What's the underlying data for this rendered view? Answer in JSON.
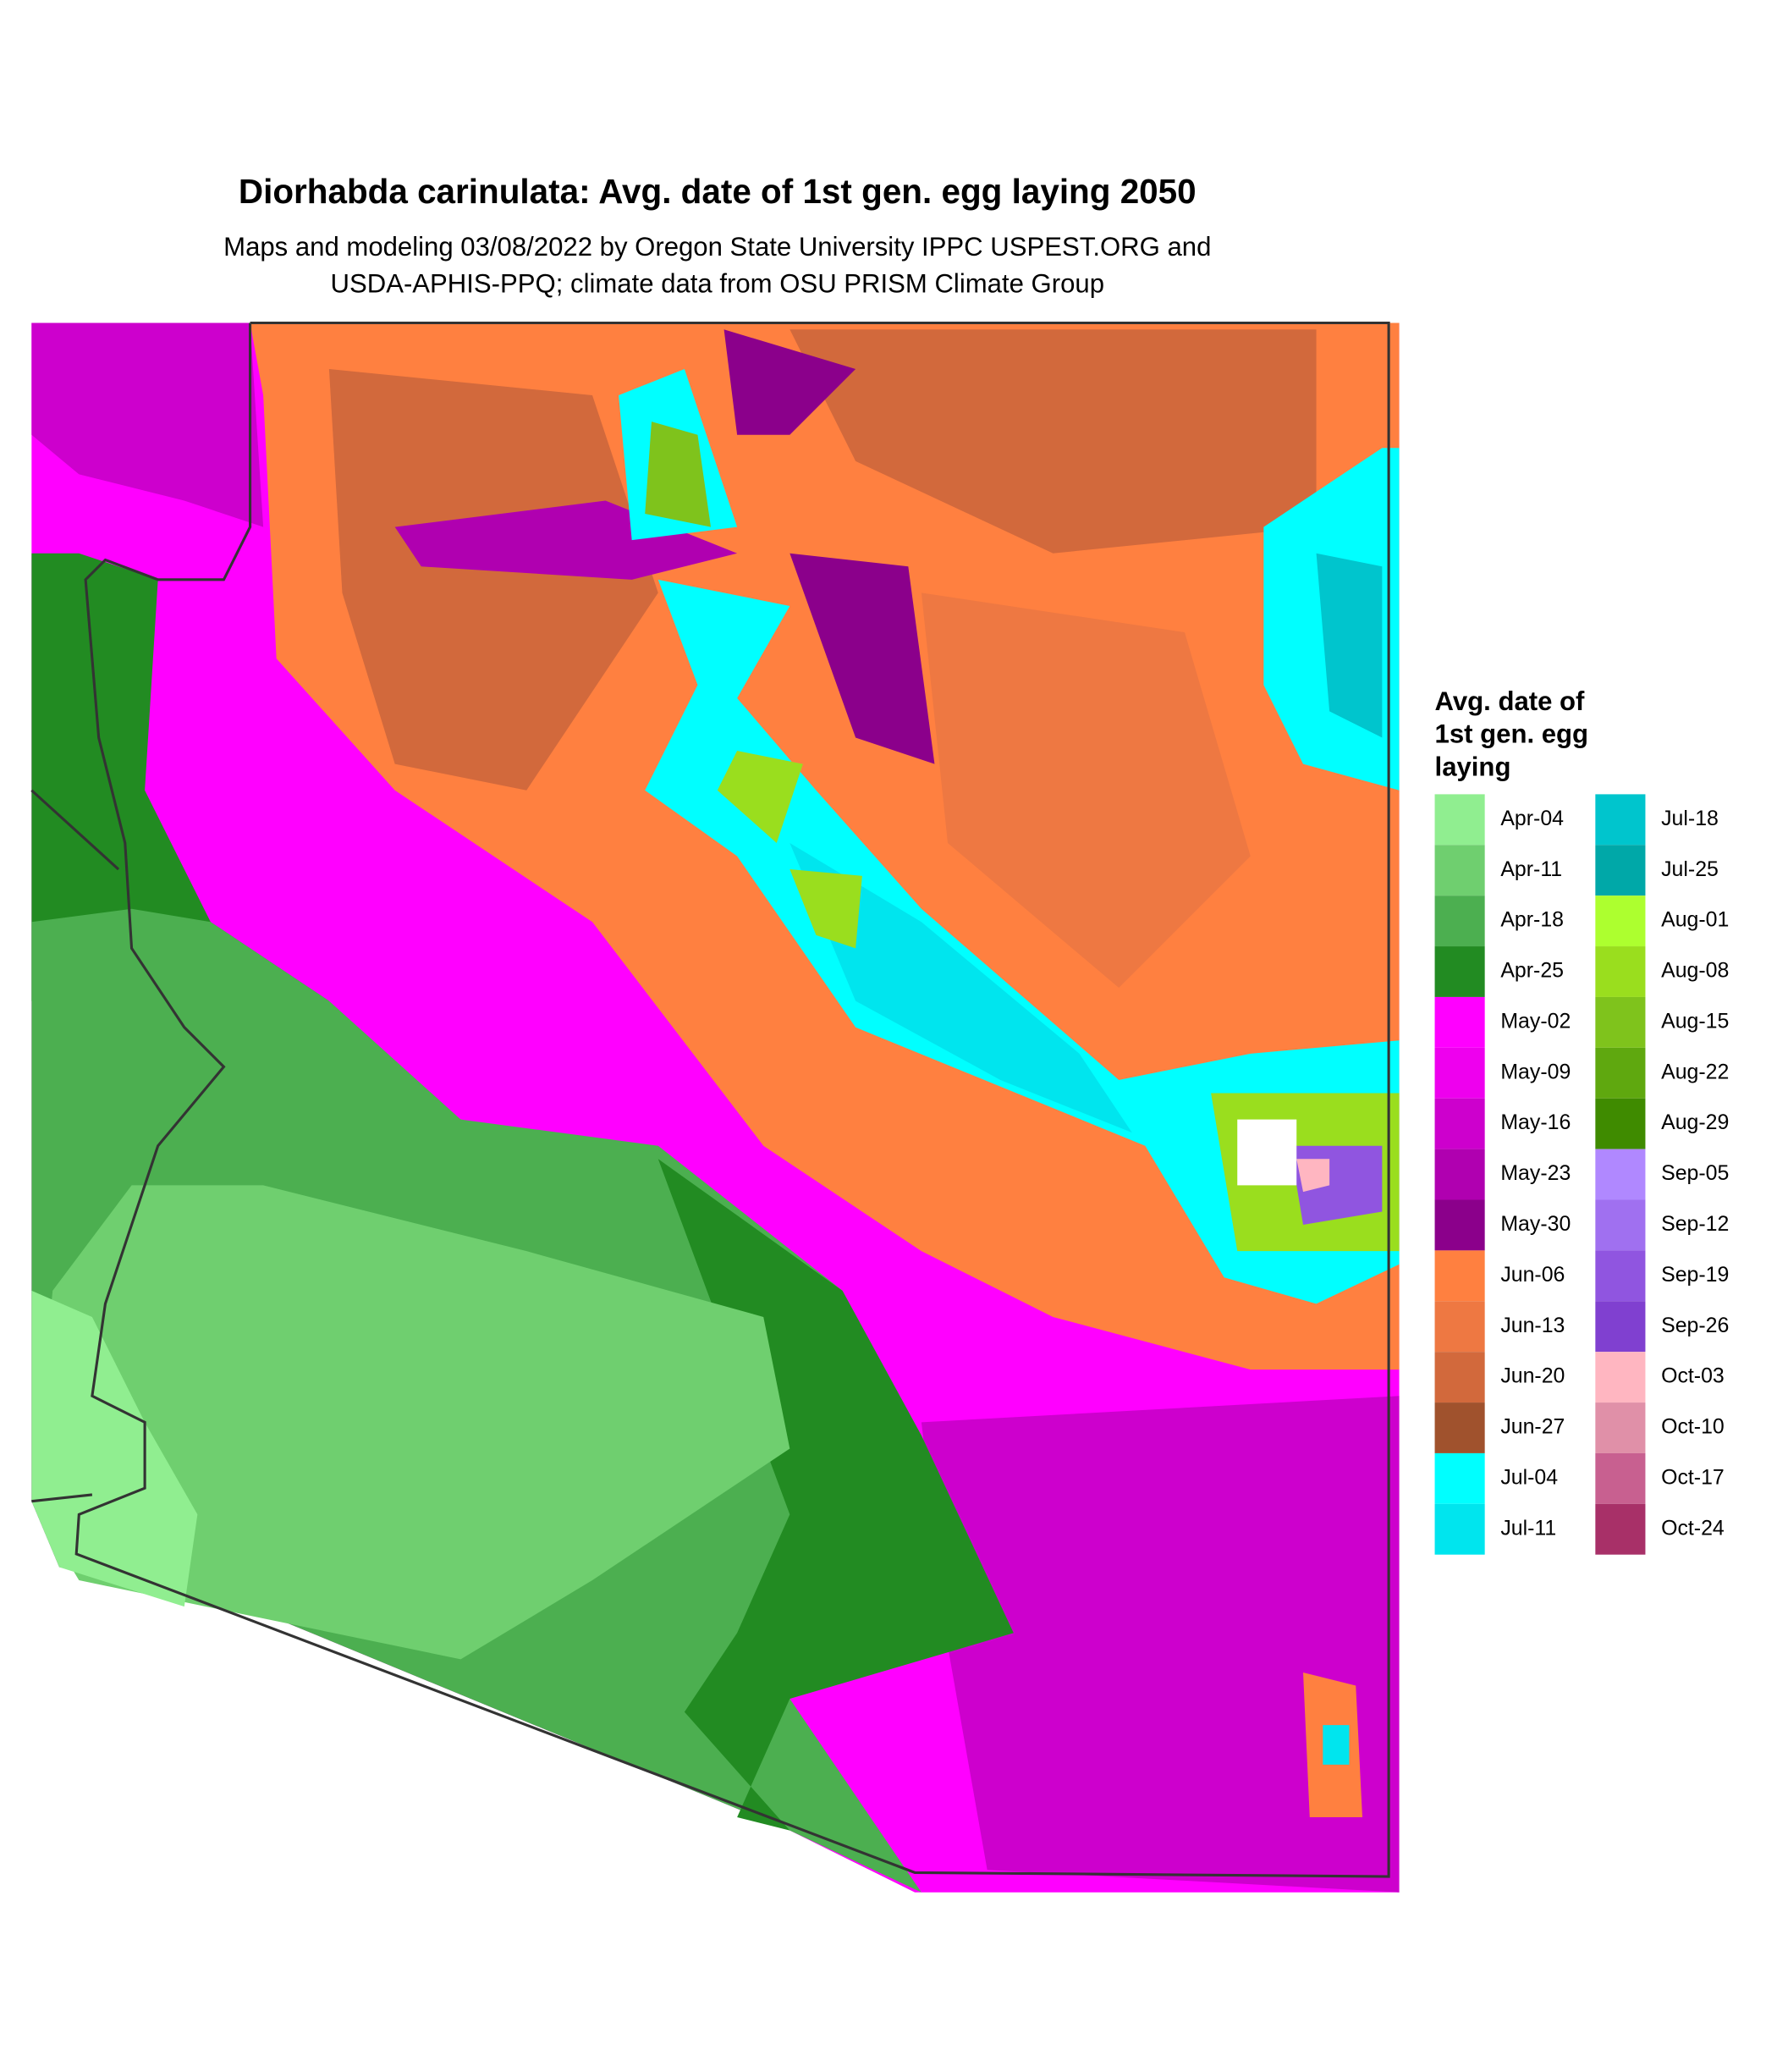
{
  "header": {
    "title": "Diorhabda carinulata: Avg. date of 1st gen. egg laying 2050",
    "subtitle": [
      "Maps and modeling 03/08/2022 by Oregon State University IPPC USPEST.ORG and",
      "USDA-APHIS-PPQ; climate data from OSU PRISM Climate Group"
    ]
  },
  "legend": {
    "title": [
      "Avg. date of",
      "1st gen. egg",
      "laying"
    ],
    "entries": [
      {
        "label": "Apr-04",
        "color": "#90EE90"
      },
      {
        "label": "Apr-11",
        "color": "#6FCF6F"
      },
      {
        "label": "Apr-18",
        "color": "#4CAF50"
      },
      {
        "label": "Apr-25",
        "color": "#228B22"
      },
      {
        "label": "May-02",
        "color": "#FF00FF"
      },
      {
        "label": "May-09",
        "color": "#EE00EE"
      },
      {
        "label": "May-16",
        "color": "#CD00CD"
      },
      {
        "label": "May-23",
        "color": "#B000B0"
      },
      {
        "label": "May-30",
        "color": "#8B008B"
      },
      {
        "label": "Jun-06",
        "color": "#FF8040"
      },
      {
        "label": "Jun-13",
        "color": "#EE7842"
      },
      {
        "label": "Jun-20",
        "color": "#D2693C"
      },
      {
        "label": "Jun-27",
        "color": "#A0522D"
      },
      {
        "label": "Jul-04",
        "color": "#00FFFF"
      },
      {
        "label": "Jul-11",
        "color": "#00E5EE"
      },
      {
        "label": "Jul-18",
        "color": "#00C5CD"
      },
      {
        "label": "Jul-25",
        "color": "#00A8A8"
      },
      {
        "label": "Aug-01",
        "color": "#ADFF2F"
      },
      {
        "label": "Aug-08",
        "color": "#9ADE1E"
      },
      {
        "label": "Aug-15",
        "color": "#7FC31C"
      },
      {
        "label": "Aug-22",
        "color": "#5FA80F"
      },
      {
        "label": "Aug-29",
        "color": "#3F8B00"
      },
      {
        "label": "Sep-05",
        "color": "#B088FF"
      },
      {
        "label": "Sep-12",
        "color": "#A070F0"
      },
      {
        "label": "Sep-19",
        "color": "#9055E0"
      },
      {
        "label": "Sep-26",
        "color": "#8040D0"
      },
      {
        "label": "Oct-03",
        "color": "#FFB6C1"
      },
      {
        "label": "Oct-10",
        "color": "#E090A8"
      },
      {
        "label": "Oct-17",
        "color": "#C86090"
      },
      {
        "label": "Oct-24",
        "color": "#A83068"
      }
    ]
  }
}
